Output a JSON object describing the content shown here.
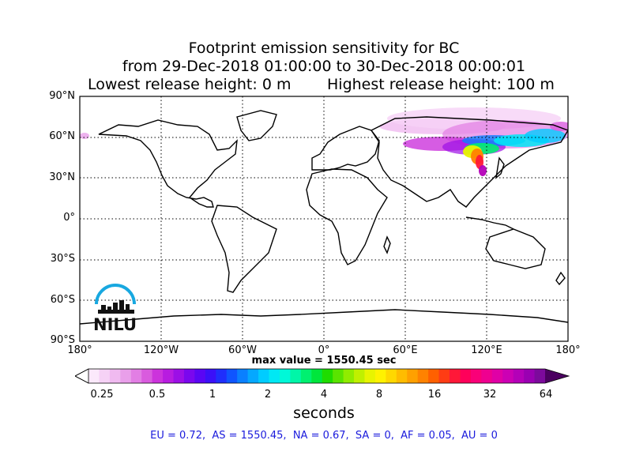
{
  "title": {
    "line1": "Footprint emission sensitivity for BC",
    "line2": "from 29-Dec-2018 01:00:00 to 30-Dec-2018 00:00:01",
    "line3_left": "Lowest release height: 0 m",
    "line3_right": "Highest release height: 100 m"
  },
  "map": {
    "lat_labels": [
      "90°N",
      "60°N",
      "30°N",
      "0°",
      "30°S",
      "60°S",
      "90°S"
    ],
    "lon_labels": [
      "180°",
      "120°W",
      "60°W",
      "0°",
      "60°E",
      "120°E",
      "180°"
    ],
    "max_value_text": "max value = 1550.45 sec",
    "logo_text": "NILU"
  },
  "colorbar": {
    "tick_labels": [
      "0.25",
      "0.5",
      "1",
      "2",
      "4",
      "8",
      "16",
      "32",
      "64"
    ],
    "label": "seconds",
    "colors": [
      "#fbe9fb",
      "#f6d2f6",
      "#f0baf0",
      "#e99fea",
      "#e27ee4",
      "#d95bde",
      "#cc33dc",
      "#b81ce0",
      "#9c0fe6",
      "#7a07ee",
      "#5a06f4",
      "#3b10f8",
      "#1f2efc",
      "#0f55ff",
      "#0a80ff",
      "#05a8ff",
      "#00ccff",
      "#00e8f4",
      "#00f8d8",
      "#00f6a8",
      "#00f070",
      "#00e63c",
      "#1fdc00",
      "#5ae400",
      "#90ec00",
      "#c0f000",
      "#e8f400",
      "#fff200",
      "#ffd800",
      "#ffbc00",
      "#ffa000",
      "#ff8200",
      "#ff6000",
      "#ff3c14",
      "#ff1838",
      "#ff005a",
      "#fa0078",
      "#ef0090",
      "#e000a6",
      "#cc00b4",
      "#b400b8",
      "#9a00b2",
      "#7c0a9c"
    ]
  },
  "regions_text": "EU = 0.72,  AS = 1550.45,  NA = 0.67,  SA = 0,  AF = 0.05,  AU = 0"
}
